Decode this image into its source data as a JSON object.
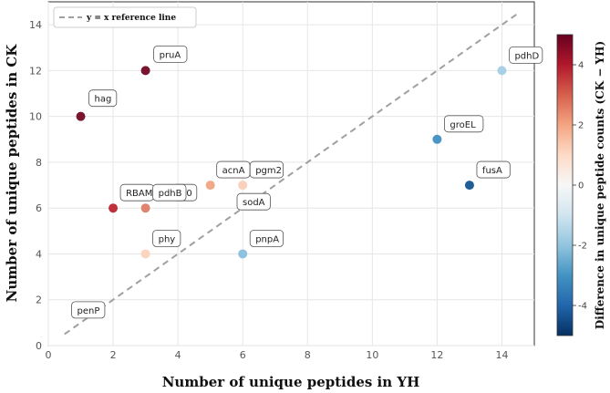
{
  "chart_data": {
    "type": "scatter",
    "xlabel": "Number of unique peptides in YH",
    "ylabel": "Number of unique peptides in CK",
    "xlim": [
      0,
      15
    ],
    "ylim": [
      0,
      15
    ],
    "xticks": [
      "0",
      "2",
      "4",
      "6",
      "8",
      "10",
      "12",
      "14"
    ],
    "yticks": [
      "0",
      "2",
      "4",
      "6",
      "8",
      "10",
      "12",
      "14"
    ],
    "grid": true,
    "reference_line": {
      "label": "y = x reference line",
      "from": [
        0.5,
        0.5
      ],
      "to": [
        14.5,
        14.5
      ],
      "color": "#a0a0a0"
    },
    "legend_position": "top-left",
    "colorbar": {
      "label": "Difference in unique peptide counts (CK − YH)",
      "min": -5,
      "max": 5,
      "ticks": [
        "4",
        "2",
        "0",
        "-2",
        "-4"
      ],
      "colors": [
        "#67001f",
        "#b2182b",
        "#d6604d",
        "#f4a582",
        "#fddbc7",
        "#f7f7f7",
        "#d1e5f0",
        "#92c5de",
        "#4393c3",
        "#2166ac",
        "#053061"
      ]
    },
    "points": [
      {
        "label": "hag",
        "x": 1,
        "y": 10,
        "color": "#7a1530"
      },
      {
        "label": "pruA",
        "x": 3,
        "y": 12,
        "color": "#7a1530"
      },
      {
        "label": "RBAM",
        "x": 2,
        "y": 6,
        "color": "#c0303c"
      },
      {
        "label": "pdhB",
        "x": 3,
        "y": 6,
        "color": "#e08470"
      },
      {
        "label": "acnA",
        "x": 5,
        "y": 7,
        "color": "#f2a98a"
      },
      {
        "label": "pgm2",
        "x": 6,
        "y": 7,
        "color": "#f9d0bb"
      },
      {
        "label": "phy",
        "x": 3,
        "y": 4,
        "color": "#fbd5c0"
      },
      {
        "label": "sodA",
        "x": 6,
        "y": 6,
        "color": "#f7f7f7"
      },
      {
        "label": "penP",
        "x": 1,
        "y": 1,
        "color": "#f7f7f7"
      },
      {
        "label": "pnpA",
        "x": 6,
        "y": 4,
        "color": "#8fc2de"
      },
      {
        "label": "pdhD",
        "x": 14,
        "y": 12,
        "color": "#a9d0e6"
      },
      {
        "label": "groEL",
        "x": 12,
        "y": 9,
        "color": "#4a95c6"
      },
      {
        "label": "fusA",
        "x": 13,
        "y": 7,
        "color": "#1f5f96"
      }
    ],
    "extra_label": "90"
  }
}
